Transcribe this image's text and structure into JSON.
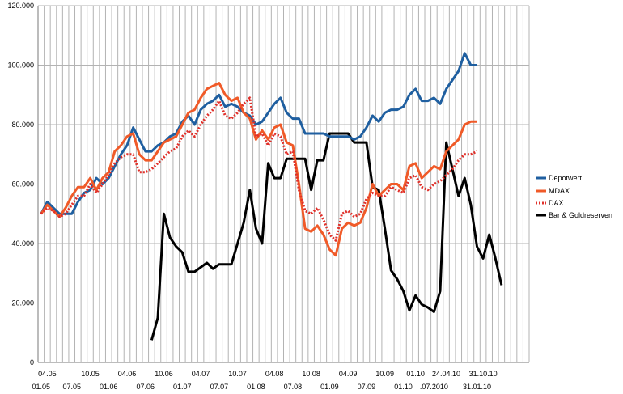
{
  "chart_data": {
    "type": "line",
    "ylim": [
      0,
      120000
    ],
    "yticks": [
      0,
      20000,
      40000,
      60000,
      80000,
      100000,
      120000
    ],
    "ytick_labels": [
      "0",
      "20.000",
      "40.000",
      "60.000",
      "80.000",
      "100.000",
      "120.000"
    ],
    "x_count": 80,
    "xtick_labels_top": [
      {
        "i": 1,
        "label": "04.05"
      },
      {
        "i": 8,
        "label": "10.05"
      },
      {
        "i": 14,
        "label": "04.06"
      },
      {
        "i": 20,
        "label": "10.06"
      },
      {
        "i": 26,
        "label": "04.07"
      },
      {
        "i": 32,
        "label": "10.07"
      },
      {
        "i": 38,
        "label": "04.08"
      },
      {
        "i": 44,
        "label": "10.08"
      },
      {
        "i": 50,
        "label": "04.09"
      },
      {
        "i": 56,
        "label": "10.09"
      },
      {
        "i": 61,
        "label": "01.10"
      },
      {
        "i": 66,
        "label": "24.04.10"
      },
      {
        "i": 72,
        "label": "31.10.10"
      }
    ],
    "xtick_labels_bottom": [
      {
        "i": 0,
        "label": "01.05"
      },
      {
        "i": 5,
        "label": "07.05"
      },
      {
        "i": 11,
        "label": "01.06"
      },
      {
        "i": 17,
        "label": "07.06"
      },
      {
        "i": 23,
        "label": "01.07"
      },
      {
        "i": 29,
        "label": "07.07"
      },
      {
        "i": 35,
        "label": "01.08"
      },
      {
        "i": 41,
        "label": "07.08"
      },
      {
        "i": 47,
        "label": "01.09"
      },
      {
        "i": 53,
        "label": "07.09"
      },
      {
        "i": 59,
        "label": "01.10"
      },
      {
        "i": 64,
        "label": ".07.2010"
      },
      {
        "i": 71,
        "label": "31.01.10"
      }
    ],
    "legend_position": "right",
    "series": [
      {
        "name": "Depotwert",
        "color": "#1f5fa0",
        "style": "solid",
        "values": [
          50000,
          54000,
          52000,
          50000,
          50000,
          50000,
          54000,
          57000,
          58000,
          62000,
          60000,
          62000,
          66000,
          70000,
          73000,
          79000,
          75000,
          71000,
          71000,
          73000,
          74000,
          76000,
          77000,
          81000,
          83000,
          80000,
          85000,
          87000,
          88000,
          90000,
          86000,
          87000,
          86000,
          84000,
          83000,
          80000,
          81000,
          84000,
          87000,
          89000,
          84000,
          82000,
          82000,
          77000,
          77000,
          77000,
          77000,
          76000,
          76000,
          76000,
          76000,
          75000,
          76000,
          79000,
          83000,
          81000,
          84000,
          85000,
          85000,
          86000,
          90000,
          92000,
          88000,
          88000,
          89000,
          87000,
          92000,
          95000,
          98000,
          104000,
          100000,
          100000,
          null,
          null,
          null,
          null,
          null,
          null,
          null,
          null
        ]
      },
      {
        "name": "MDAX",
        "color": "#f05a28",
        "style": "solid",
        "values": [
          50000,
          53000,
          51000,
          49000,
          52000,
          56000,
          59000,
          59000,
          62000,
          58000,
          62000,
          64000,
          71000,
          73000,
          76000,
          77000,
          70000,
          68000,
          68000,
          71000,
          74000,
          75000,
          76000,
          80000,
          84000,
          85000,
          89000,
          92000,
          93000,
          94000,
          90000,
          88000,
          89000,
          84000,
          82000,
          75000,
          78000,
          75000,
          79000,
          80000,
          74000,
          73000,
          60000,
          45000,
          44000,
          46000,
          43000,
          38000,
          36000,
          45000,
          47000,
          46000,
          47000,
          52000,
          60000,
          56000,
          58000,
          60000,
          60000,
          58000,
          66000,
          67000,
          62000,
          64000,
          66000,
          65000,
          71000,
          73000,
          75000,
          80000,
          81000,
          81000,
          null,
          null,
          null,
          null,
          null,
          null,
          null,
          null
        ]
      },
      {
        "name": "DAX",
        "color": "#e0302a",
        "style": "dotted",
        "values": [
          50000,
          52000,
          51000,
          49000,
          50000,
          53000,
          56000,
          56000,
          60000,
          57000,
          60000,
          63000,
          67000,
          69000,
          70000,
          70000,
          64000,
          64000,
          65000,
          67000,
          69000,
          71000,
          72000,
          76000,
          78000,
          76000,
          80000,
          83000,
          85000,
          88000,
          83000,
          82000,
          84000,
          87000,
          89000,
          76000,
          77000,
          73000,
          77000,
          76000,
          70000,
          71000,
          58000,
          51000,
          50000,
          52000,
          48000,
          43000,
          41000,
          50000,
          51000,
          49000,
          50000,
          55000,
          57000,
          56000,
          56000,
          59000,
          58000,
          57000,
          62000,
          63000,
          59000,
          58000,
          60000,
          61000,
          63000,
          65000,
          68000,
          70000,
          70000,
          71000,
          null,
          null,
          null,
          null,
          null,
          null,
          null,
          null
        ]
      },
      {
        "name": "Bar & Goldreserven",
        "color": "#000000",
        "style": "solid",
        "values": [
          null,
          null,
          null,
          null,
          null,
          null,
          null,
          null,
          null,
          null,
          null,
          null,
          null,
          null,
          null,
          null,
          null,
          null,
          7500,
          15000,
          50000,
          42000,
          39000,
          37000,
          30500,
          30500,
          32000,
          33500,
          31500,
          33000,
          33000,
          33000,
          40000,
          47000,
          58000,
          45000,
          40000,
          67000,
          62000,
          62000,
          68500,
          68500,
          68500,
          68500,
          58000,
          68000,
          68000,
          77000,
          77000,
          77000,
          77000,
          74000,
          74000,
          74000,
          59000,
          58000,
          45000,
          31000,
          28000,
          24000,
          17500,
          22500,
          19500,
          18500,
          17000,
          24000,
          74000,
          65000,
          56000,
          62000,
          53000,
          39000,
          35000,
          43000,
          35000,
          26000
        ]
      }
    ]
  }
}
